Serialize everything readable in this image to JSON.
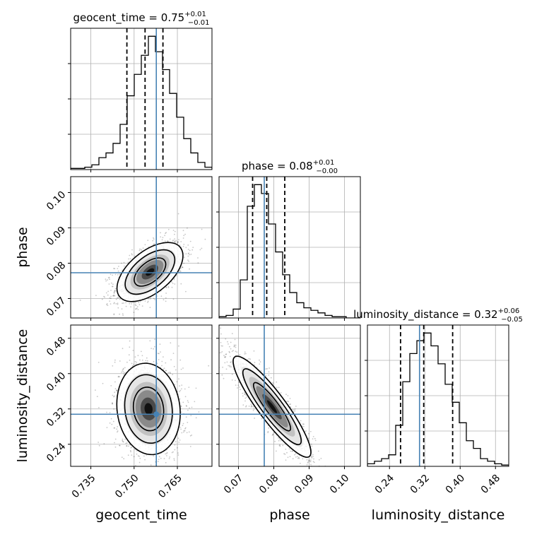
{
  "chart_data": {
    "type": "corner",
    "parameters": [
      {
        "name": "geocent_time",
        "xlabel": "geocent_time",
        "title_prefix": "geocent_time = ",
        "median": "0.75",
        "err_plus": "+0.01",
        "err_minus": "−0.01",
        "range": [
          0.728,
          0.777
        ],
        "ticks": [
          0.735,
          0.75,
          0.765
        ],
        "tick_labels": [
          "0.735",
          "0.750",
          "0.765"
        ],
        "quantiles": [
          0.7475,
          0.7538,
          0.76
        ],
        "truth": 0.7577,
        "hist_edges_start": 0.728,
        "hist_bin_width": 0.00245,
        "hist": [
          1,
          1,
          2,
          4,
          10,
          14,
          22,
          38,
          62,
          80,
          96,
          112,
          99,
          84,
          64,
          44,
          26,
          14,
          6,
          2
        ]
      },
      {
        "name": "phase",
        "xlabel": "phase",
        "ylabel": "phase",
        "title_prefix": "phase = ",
        "median": "0.08",
        "err_plus": "+0.01",
        "err_minus": "−0.00",
        "range": [
          0.0645,
          0.1045
        ],
        "ticks": [
          0.07,
          0.08,
          0.09,
          0.1
        ],
        "tick_labels": [
          "0.07",
          "0.08",
          "0.09",
          "0.10"
        ],
        "quantiles": [
          0.074,
          0.078,
          0.0831
        ],
        "truth": 0.0773,
        "hist_edges_start": 0.0645,
        "hist_bin_width": 0.002,
        "hist": [
          1,
          2,
          7,
          30,
          88,
          105,
          98,
          74,
          52,
          34,
          20,
          12,
          8,
          6,
          4,
          2,
          1,
          1,
          0,
          0
        ]
      },
      {
        "name": "luminosity_distance",
        "xlabel": "luminosity_distance",
        "ylabel": "luminosity_distance",
        "title_prefix": "luminosity_distance = ",
        "median": "0.32",
        "err_plus": "+0.06",
        "err_minus": "−0.05",
        "range": [
          0.19,
          0.51
        ],
        "ticks": [
          0.24,
          0.32,
          0.4,
          0.48
        ],
        "tick_labels": [
          "0.24",
          "0.32",
          "0.40",
          "0.48"
        ],
        "quantiles": [
          0.265,
          0.3175,
          0.383
        ],
        "truth": 0.308,
        "hist_edges_start": 0.19,
        "hist_bin_width": 0.016,
        "hist": [
          2,
          4,
          6,
          9,
          32,
          66,
          88,
          98,
          104,
          94,
          80,
          64,
          50,
          34,
          20,
          14,
          6,
          4,
          2,
          1
        ]
      }
    ],
    "pairs": [
      {
        "x": "geocent_time",
        "y": "phase",
        "mean": [
          0.7555,
          0.0775
        ],
        "sd": [
          0.0052,
          0.0038
        ],
        "corr": 0.55,
        "truth_marker": false
      },
      {
        "x": "geocent_time",
        "y": "luminosity_distance",
        "mean": [
          0.755,
          0.32
        ],
        "sd": [
          0.005,
          0.047
        ],
        "corr": -0.1,
        "truth_marker": true
      },
      {
        "x": "phase",
        "y": "luminosity_distance",
        "mean": [
          0.0795,
          0.325
        ],
        "sd": [
          0.005,
          0.052
        ],
        "corr": -0.9,
        "truth_marker": false
      }
    ],
    "grid": true,
    "truth_color": "#4682b4",
    "line_color": "#000000"
  }
}
